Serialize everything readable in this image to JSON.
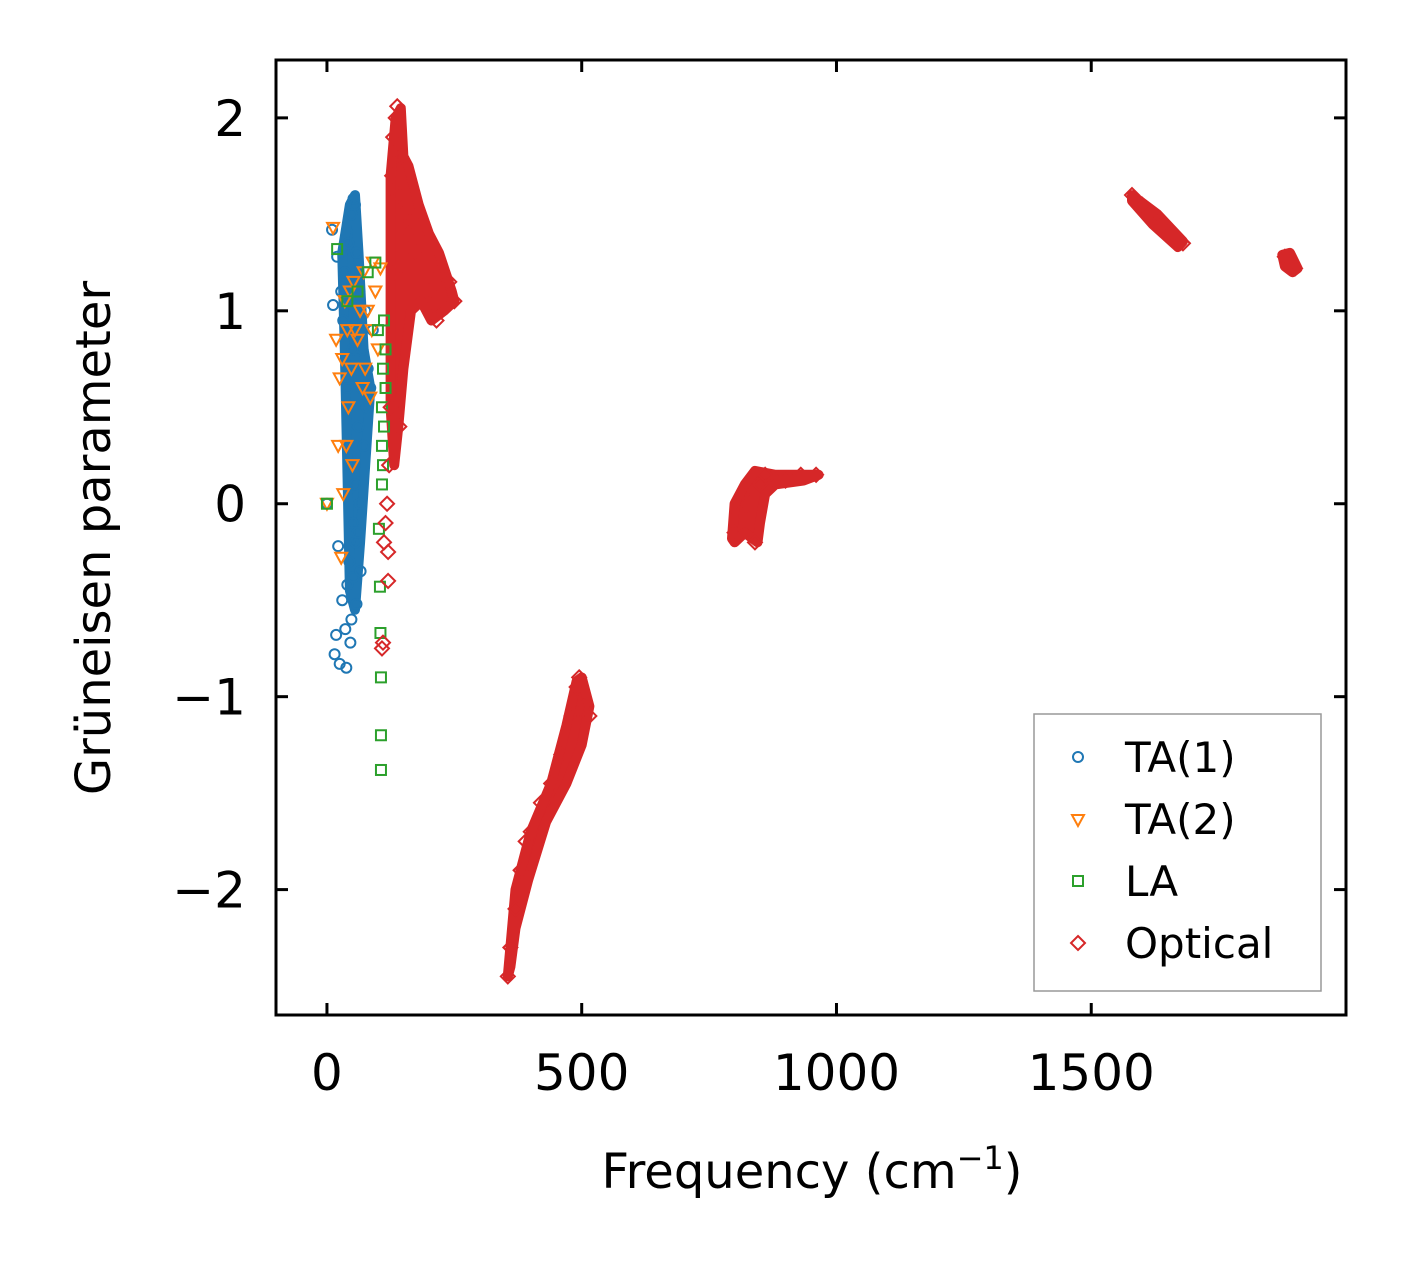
{
  "chart_data": {
    "type": "scatter",
    "xlabel": "Frequency (cm",
    "xlabel_superscript": "−1",
    "xlabel_suffix": ")",
    "ylabel": "Grüneisen parameter",
    "xlim": [
      -100,
      2000
    ],
    "ylim": [
      -2.65,
      2.3
    ],
    "xticks": [
      0,
      500,
      1000,
      1500
    ],
    "xtick_labels": [
      "0",
      "500",
      "1000",
      "1500"
    ],
    "yticks": [
      2,
      1,
      0,
      -1,
      -2
    ],
    "ytick_labels": [
      "2",
      "1",
      "0",
      "−1",
      "−2"
    ],
    "legend_position": "lower-right",
    "series": [
      {
        "name": "TA(1)",
        "marker": "circle",
        "color": "#1f77b4",
        "points": [
          [
            0,
            0
          ],
          [
            10,
            1.42
          ],
          [
            12,
            1.03
          ],
          [
            15,
            -0.78
          ],
          [
            18,
            -0.68
          ],
          [
            20,
            1.28
          ],
          [
            22,
            -0.22
          ],
          [
            25,
            -0.83
          ],
          [
            28,
            1.1
          ],
          [
            30,
            -0.5
          ],
          [
            32,
            0.95
          ],
          [
            35,
            1.2
          ],
          [
            36,
            -0.65
          ],
          [
            38,
            -0.85
          ],
          [
            40,
            0.6
          ],
          [
            40,
            -0.42
          ],
          [
            42,
            1.35
          ],
          [
            44,
            -0.3
          ],
          [
            45,
            0.2
          ],
          [
            46,
            -0.72
          ],
          [
            48,
            1.5
          ],
          [
            48,
            -0.6
          ],
          [
            50,
            0.8
          ],
          [
            50,
            -0.1
          ],
          [
            52,
            1.58
          ],
          [
            52,
            -0.38
          ],
          [
            55,
            1.55
          ],
          [
            55,
            0.1
          ],
          [
            56,
            -0.2
          ],
          [
            58,
            1.3
          ],
          [
            58,
            -0.52
          ],
          [
            60,
            0.9
          ],
          [
            60,
            -0.15
          ],
          [
            62,
            0.4
          ],
          [
            64,
            1.1
          ],
          [
            65,
            0.0
          ],
          [
            66,
            -0.35
          ],
          [
            68,
            0.6
          ],
          [
            70,
            0.8
          ],
          [
            72,
            0.3
          ],
          [
            75,
            1.0
          ],
          [
            78,
            0.5
          ],
          [
            80,
            0.7
          ],
          [
            85,
            0.6
          ],
          [
            90,
            0.9
          ]
        ]
      },
      {
        "name": "TA(2)",
        "marker": "triangle-down",
        "color": "#ff7f0e",
        "points": [
          [
            0,
            0
          ],
          [
            12,
            1.43
          ],
          [
            18,
            0.85
          ],
          [
            22,
            0.3
          ],
          [
            25,
            0.65
          ],
          [
            28,
            -0.28
          ],
          [
            30,
            0.75
          ],
          [
            32,
            0.05
          ],
          [
            35,
            1.05
          ],
          [
            38,
            0.3
          ],
          [
            40,
            0.9
          ],
          [
            42,
            0.5
          ],
          [
            45,
            1.1
          ],
          [
            48,
            0.7
          ],
          [
            50,
            0.2
          ],
          [
            52,
            1.15
          ],
          [
            55,
            0.9
          ],
          [
            60,
            0.85
          ],
          [
            65,
            1.0
          ],
          [
            70,
            0.6
          ],
          [
            72,
            1.2
          ],
          [
            75,
            0.7
          ],
          [
            80,
            1.0
          ],
          [
            85,
            0.55
          ],
          [
            88,
            0.9
          ],
          [
            90,
            1.25
          ],
          [
            95,
            1.1
          ],
          [
            100,
            0.8
          ],
          [
            105,
            1.22
          ]
        ]
      },
      {
        "name": "LA",
        "marker": "square",
        "color": "#2ca02c",
        "points": [
          [
            0,
            0
          ],
          [
            20,
            1.32
          ],
          [
            40,
            1.05
          ],
          [
            60,
            1.1
          ],
          [
            80,
            1.2
          ],
          [
            95,
            1.25
          ],
          [
            100,
            0.9
          ],
          [
            102,
            -0.13
          ],
          [
            104,
            -0.43
          ],
          [
            105,
            -0.67
          ],
          [
            106,
            -0.9
          ],
          [
            106,
            -1.2
          ],
          [
            106,
            -1.38
          ],
          [
            108,
            0.3
          ],
          [
            108,
            0.5
          ],
          [
            108,
            0.1
          ],
          [
            110,
            0.7
          ],
          [
            110,
            0.2
          ],
          [
            112,
            0.95
          ],
          [
            112,
            0.4
          ],
          [
            115,
            0.8
          ],
          [
            115,
            0.6
          ]
        ]
      },
      {
        "name": "Optical",
        "marker": "diamond",
        "color": "#d62728",
        "points": [
          [
            108,
            -0.75
          ],
          [
            110,
            -0.72
          ],
          [
            112,
            -0.2
          ],
          [
            115,
            -0.1
          ],
          [
            118,
            0.0
          ],
          [
            120,
            -0.4
          ],
          [
            120,
            -0.25
          ],
          [
            122,
            0.2
          ],
          [
            125,
            0.5
          ],
          [
            128,
            1.7
          ],
          [
            130,
            1.9
          ],
          [
            132,
            1.2
          ],
          [
            135,
            2.0
          ],
          [
            138,
            2.06
          ],
          [
            140,
            1.6
          ],
          [
            142,
            0.4
          ],
          [
            145,
            1.8
          ],
          [
            150,
            1.5
          ],
          [
            160,
            1.4
          ],
          [
            175,
            1.3
          ],
          [
            200,
            1.1
          ],
          [
            215,
            0.95
          ],
          [
            220,
            1.2
          ],
          [
            240,
            1.15
          ],
          [
            250,
            1.05
          ],
          [
            355,
            -2.45
          ],
          [
            360,
            -2.3
          ],
          [
            370,
            -2.1
          ],
          [
            380,
            -1.9
          ],
          [
            390,
            -1.75
          ],
          [
            400,
            -1.7
          ],
          [
            420,
            -1.55
          ],
          [
            440,
            -1.45
          ],
          [
            460,
            -1.3
          ],
          [
            480,
            -1.1
          ],
          [
            490,
            -0.95
          ],
          [
            495,
            -0.9
          ],
          [
            505,
            -1.05
          ],
          [
            515,
            -1.1
          ],
          [
            800,
            -0.15
          ],
          [
            810,
            -0.05
          ],
          [
            820,
            0.05
          ],
          [
            830,
            0.0
          ],
          [
            840,
            -0.2
          ],
          [
            850,
            0.1
          ],
          [
            860,
            0.15
          ],
          [
            880,
            0.12
          ],
          [
            900,
            0.12
          ],
          [
            930,
            0.15
          ],
          [
            960,
            0.15
          ],
          [
            1580,
            1.6
          ],
          [
            1600,
            1.55
          ],
          [
            1620,
            1.5
          ],
          [
            1640,
            1.45
          ],
          [
            1660,
            1.4
          ],
          [
            1680,
            1.35
          ],
          [
            1880,
            1.28
          ],
          [
            1890,
            1.25
          ],
          [
            1900,
            1.22
          ]
        ]
      }
    ],
    "bands": [
      {
        "series": "Optical",
        "polyline": [
          [
            125,
            1.7
          ],
          [
            135,
            2.0
          ],
          [
            145,
            2.05
          ],
          [
            150,
            1.8
          ],
          [
            160,
            1.75
          ],
          [
            180,
            1.55
          ],
          [
            200,
            1.4
          ],
          [
            220,
            1.3
          ],
          [
            245,
            1.1
          ],
          [
            250,
            1.05
          ],
          [
            230,
            1.0
          ],
          [
            205,
            0.95
          ],
          [
            185,
            1.05
          ],
          [
            165,
            1.0
          ],
          [
            150,
            0.7
          ],
          [
            140,
            0.4
          ],
          [
            132,
            0.2
          ],
          [
            125,
            0.5
          ]
        ]
      },
      {
        "series": "TA(1)",
        "polyline": [
          [
            30,
            1.3
          ],
          [
            45,
            1.55
          ],
          [
            55,
            1.6
          ],
          [
            62,
            1.3
          ],
          [
            72,
            0.8
          ],
          [
            85,
            0.6
          ],
          [
            75,
            0.2
          ],
          [
            65,
            -0.2
          ],
          [
            55,
            -0.55
          ],
          [
            45,
            -0.45
          ],
          [
            40,
            0.2
          ],
          [
            35,
            0.8
          ]
        ]
      },
      {
        "series": "Optical",
        "polyline": [
          [
            355,
            -2.45
          ],
          [
            370,
            -2.0
          ],
          [
            400,
            -1.7
          ],
          [
            440,
            -1.45
          ],
          [
            470,
            -1.15
          ],
          [
            490,
            -0.92
          ],
          [
            500,
            -0.9
          ],
          [
            515,
            -1.05
          ],
          [
            500,
            -1.25
          ],
          [
            470,
            -1.45
          ],
          [
            430,
            -1.65
          ],
          [
            395,
            -1.95
          ],
          [
            370,
            -2.2
          ],
          [
            360,
            -2.4
          ]
        ]
      },
      {
        "series": "Optical",
        "polyline": [
          [
            795,
            -0.18
          ],
          [
            800,
            0.0
          ],
          [
            820,
            0.1
          ],
          [
            840,
            0.17
          ],
          [
            880,
            0.15
          ],
          [
            930,
            0.15
          ],
          [
            965,
            0.15
          ],
          [
            935,
            0.12
          ],
          [
            880,
            0.1
          ],
          [
            860,
            0.05
          ],
          [
            850,
            -0.1
          ],
          [
            845,
            -0.2
          ],
          [
            820,
            -0.15
          ],
          [
            800,
            -0.2
          ]
        ]
      },
      {
        "series": "Optical",
        "polyline": [
          [
            1580,
            1.6
          ],
          [
            1630,
            1.5
          ],
          [
            1680,
            1.36
          ],
          [
            1670,
            1.33
          ],
          [
            1620,
            1.45
          ],
          [
            1580,
            1.57
          ]
        ]
      },
      {
        "series": "Optical",
        "polyline": [
          [
            1875,
            1.29
          ],
          [
            1890,
            1.3
          ],
          [
            1905,
            1.22
          ],
          [
            1895,
            1.2
          ],
          [
            1880,
            1.23
          ]
        ]
      }
    ]
  }
}
